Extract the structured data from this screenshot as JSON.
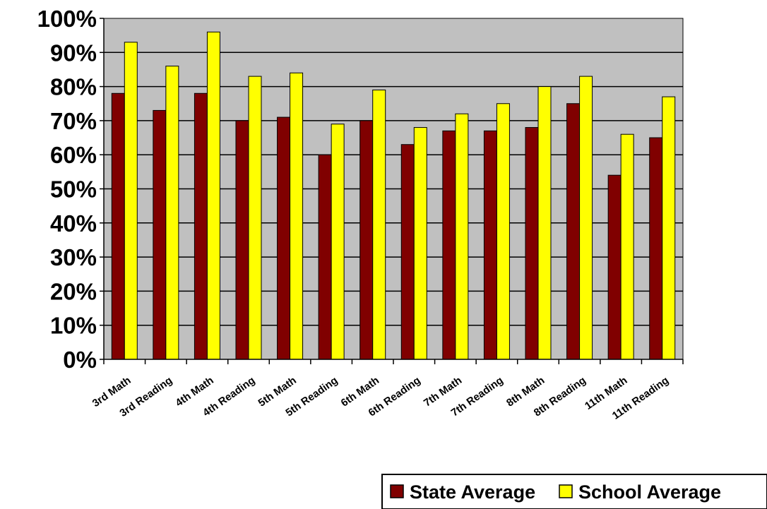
{
  "chart_data": {
    "type": "bar",
    "categories": [
      "3rd Math",
      "3rd Reading",
      "4th Math",
      "4th Reading",
      "5th Math",
      "5th Reading",
      "6th Math",
      "6th Reading",
      "7th Math",
      "7th Reading",
      "8th Math",
      "8th Reading",
      "11th Math",
      "11th Reading"
    ],
    "series": [
      {
        "name": "State Average",
        "color": "#800000",
        "values": [
          78,
          73,
          78,
          70,
          71,
          60,
          70,
          63,
          67,
          67,
          68,
          75,
          54,
          65
        ]
      },
      {
        "name": "School Average",
        "color": "#FFFF00",
        "values": [
          93,
          86,
          96,
          83,
          84,
          69,
          79,
          68,
          72,
          75,
          80,
          83,
          66,
          77
        ]
      }
    ],
    "yticks": [
      "0%",
      "10%",
      "20%",
      "30%",
      "40%",
      "50%",
      "60%",
      "70%",
      "80%",
      "90%",
      "100%"
    ],
    "ylim": [
      0,
      100
    ],
    "grid": true,
    "plot_background": "#C0C0C0",
    "legend_position": "bottom-right",
    "title": "",
    "xlabel": "",
    "ylabel": ""
  }
}
